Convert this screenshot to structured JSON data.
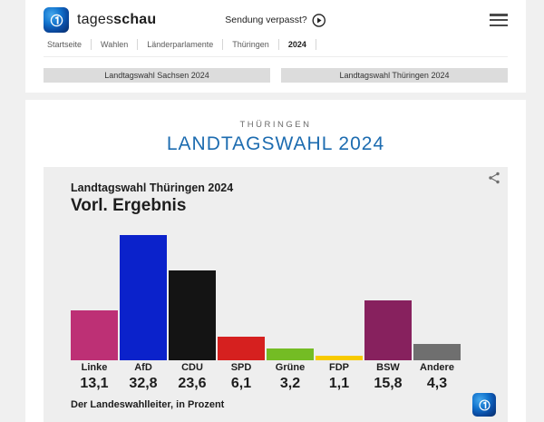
{
  "header": {
    "brand_regular": "tages",
    "brand_bold": "schau",
    "watch_label": "Sendung verpasst?"
  },
  "breadcrumb": {
    "items": [
      "Startseite",
      "Wahlen",
      "Länderparlamente",
      "Thüringen",
      "2024"
    ]
  },
  "tabs": [
    {
      "label": "Landtagswahl Sachsen 2024"
    },
    {
      "label": "Landtagswahl Thüringen 2024"
    }
  ],
  "page": {
    "kicker": "THÜRINGEN",
    "title": "LANDTAGSWAHL 2024"
  },
  "colors": {
    "accent_blue": "#1d6cb0",
    "logo_blue": "#0b4ea6",
    "card_bg": "#eeeeee",
    "tab_bg": "#dcdcdc"
  },
  "chart_data": {
    "type": "bar",
    "title": "Landtagswahl Thüringen 2024",
    "subtitle": "Vorl. Ergebnis",
    "categories": [
      "Linke",
      "AfD",
      "CDU",
      "SPD",
      "Grüne",
      "FDP",
      "BSW",
      "Andere"
    ],
    "values": [
      13.1,
      32.8,
      23.6,
      6.1,
      3.2,
      1.1,
      15.8,
      4.3
    ],
    "value_labels": [
      "13,1",
      "32,8",
      "23,6",
      "6,1",
      "3,2",
      "1,1",
      "15,8",
      "4,3"
    ],
    "colors": [
      "#bd3075",
      "#0b22cb",
      "#141414",
      "#d6201f",
      "#74bc24",
      "#f7ca00",
      "#87215e",
      "#6f6f6f"
    ],
    "source": "Der Landeswahlleiter, in Prozent",
    "ylabel": "Prozent",
    "ylim": [
      0,
      35
    ],
    "grid": false,
    "legend": false
  }
}
